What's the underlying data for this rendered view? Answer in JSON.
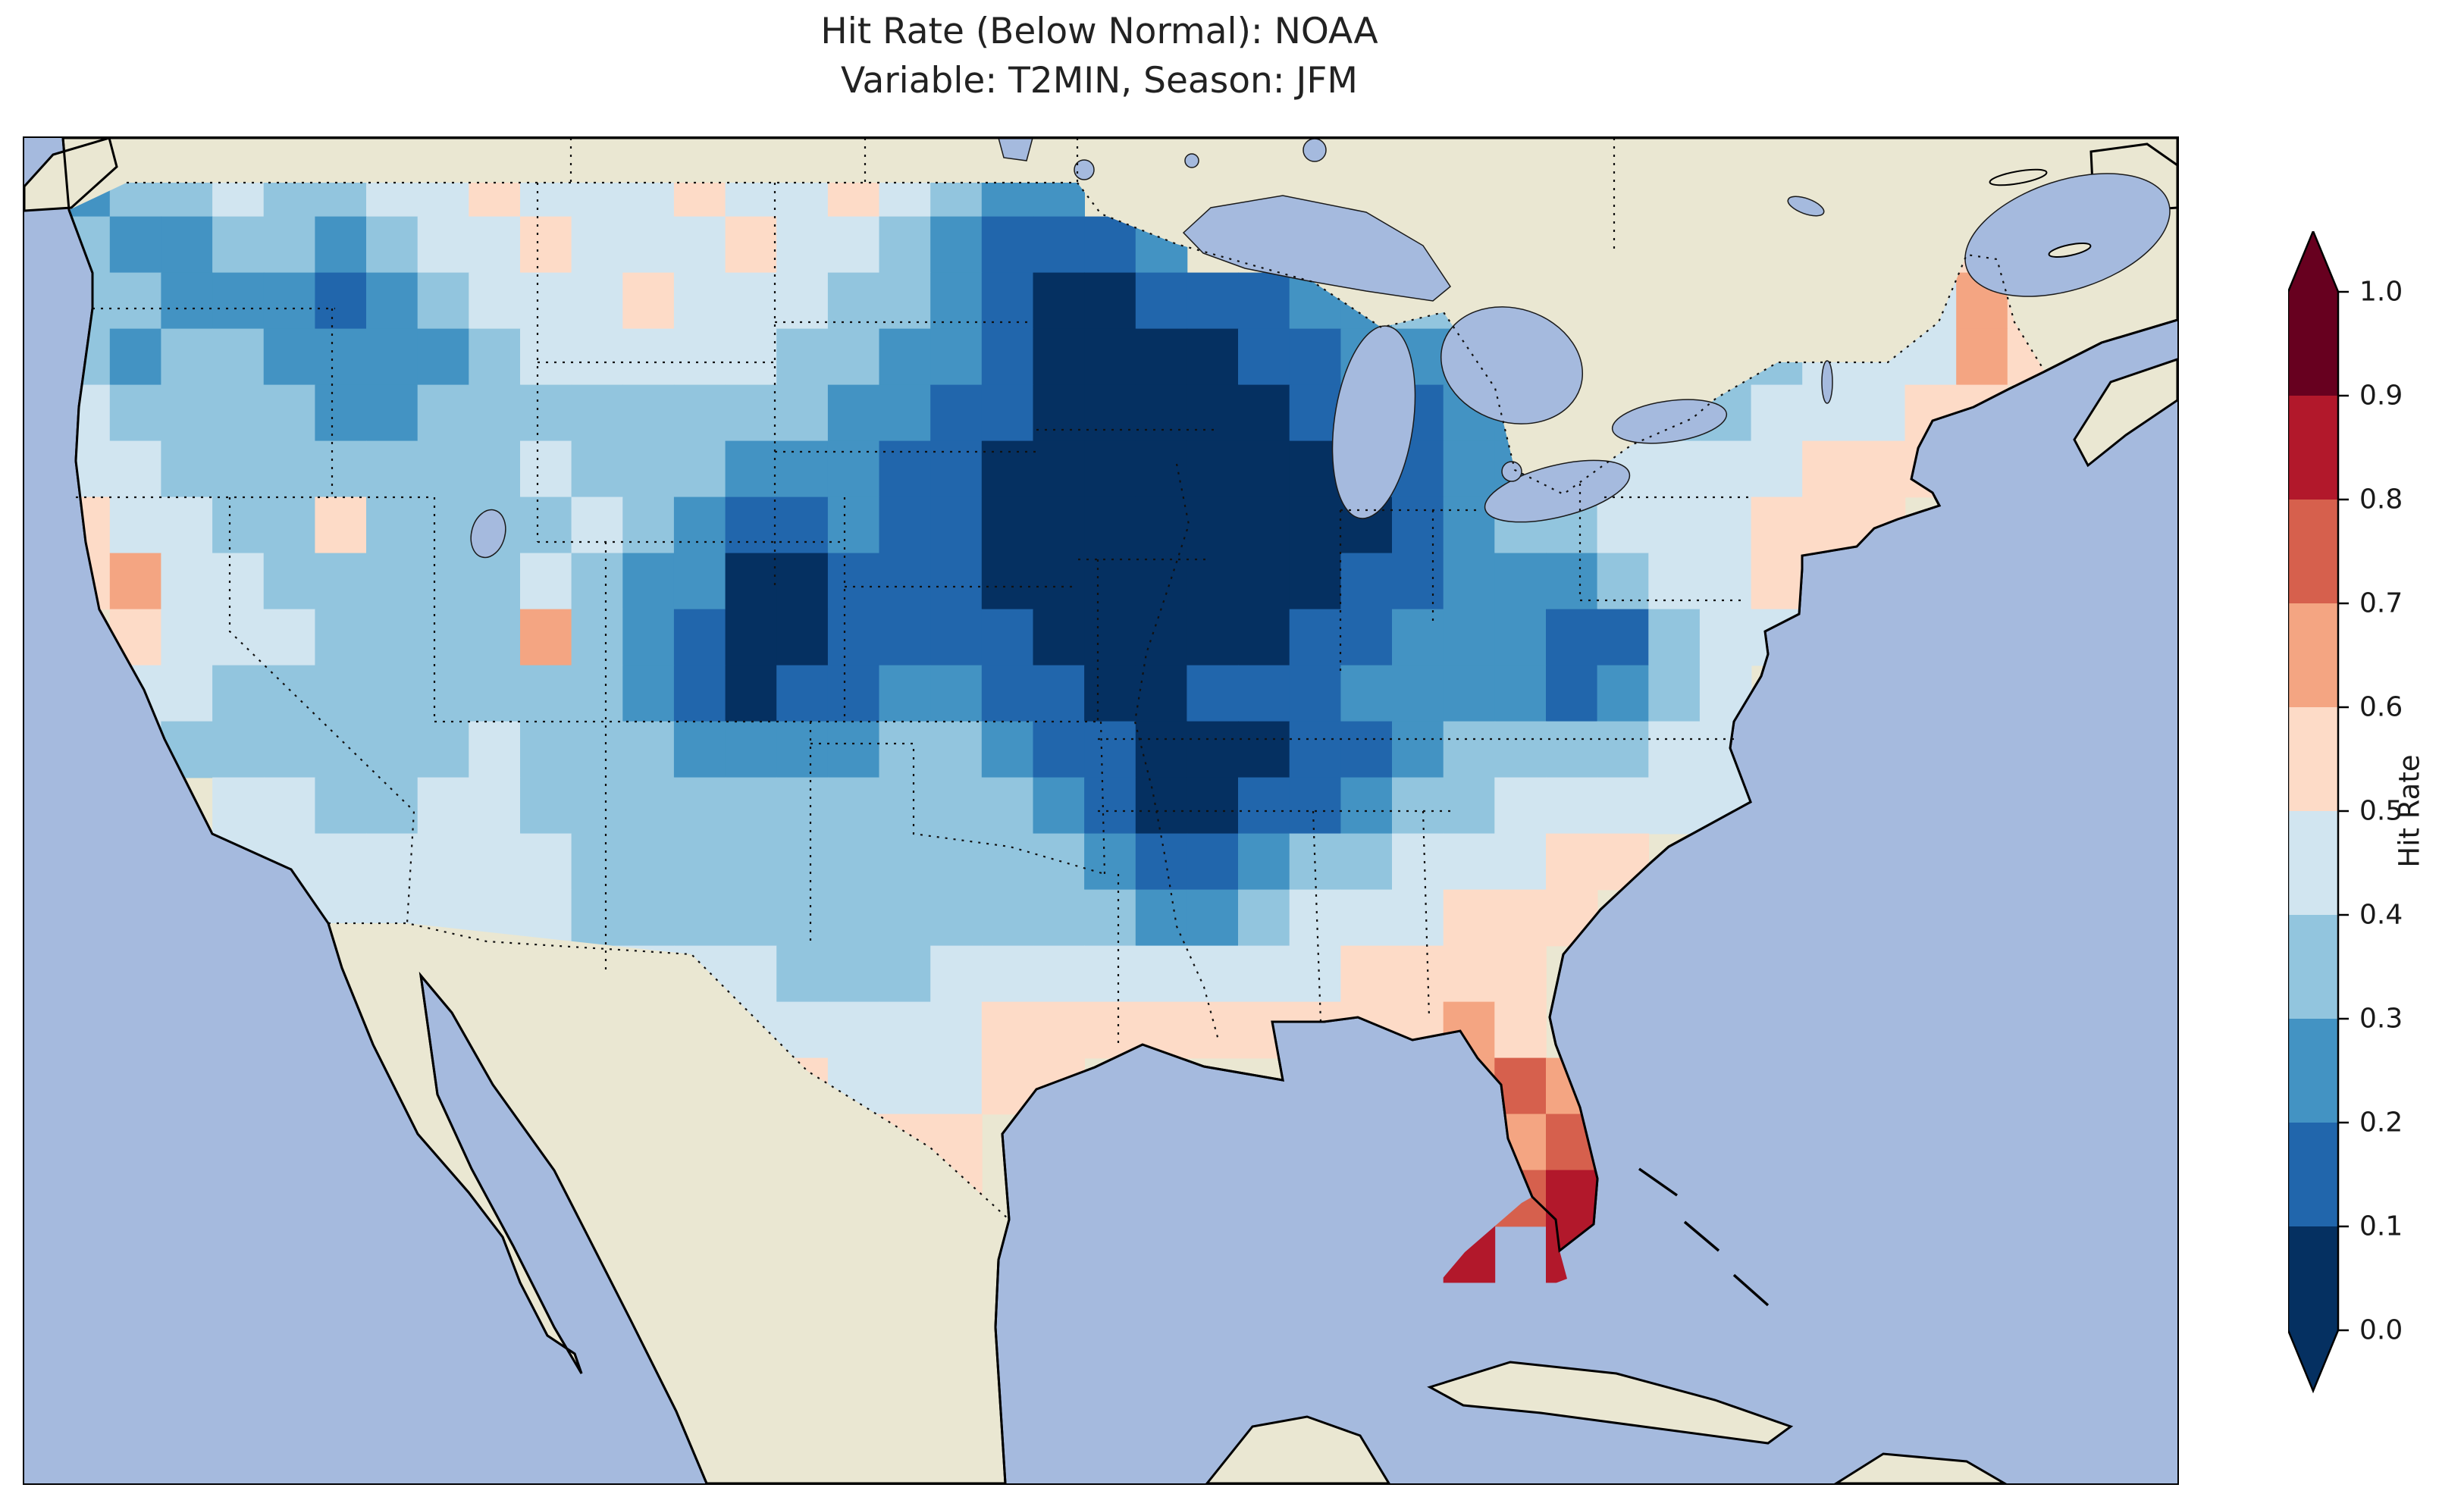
{
  "figure": {
    "title_line1": "Hit Rate (Below Normal): NOAA",
    "title_line2": "Variable: T2MIN, Season: JFM"
  },
  "colorbar": {
    "label": "Hit Rate",
    "ticks": [
      "1.0",
      "0.9",
      "0.8",
      "0.7",
      "0.6",
      "0.5",
      "0.4",
      "0.3",
      "0.2",
      "0.1",
      "0.0"
    ],
    "bin_colors_low_to_high": [
      "#053061",
      "#2166ac",
      "#4393c3",
      "#92c5de",
      "#d1e5f0",
      "#fddbc7",
      "#f4a582",
      "#d6604d",
      "#b2182b",
      "#67001f"
    ],
    "under_arrow_color": "#053061",
    "over_arrow_color": "#67001f"
  },
  "map_style": {
    "ocean_color": "#a5bade",
    "land_color": "#eae7d2",
    "lake_color": "#a5bade",
    "coastline_color": "#000000",
    "border_style": "dotted"
  },
  "chart_data": {
    "type": "heatmap",
    "title": "Hit Rate (Below Normal): NOAA",
    "subtitle": "Variable: T2MIN, Season: JFM",
    "metric": "Hit Rate (Below Normal)",
    "source": "NOAA",
    "variable": "T2MIN",
    "season": "JFM",
    "colormap": "RdBu_r (discrete, 10 bins)",
    "vmin": 0.0,
    "vmax": 1.0,
    "colorbar_label": "Hit Rate",
    "colorbar_ticks": [
      0.0,
      0.1,
      0.2,
      0.3,
      0.4,
      0.5,
      0.6,
      0.7,
      0.8,
      0.9,
      1.0
    ],
    "legend_position": "right",
    "region": "Contiguous United States (CONUS)",
    "grid": {
      "lon_min": -125,
      "lon_max": -65,
      "lat_min": 24.5,
      "lat_max": 49.5,
      "ncols": 40,
      "nrows": 20,
      "encoding": "rows ordered north to south; each char is a hit-rate bin digit d (value between d/10 and (d+1)/10); '.' = no data / masked",
      "rows": [
        "23343344544454454322....................",
        "3223323445444544321112...............54.",
        "33222123444544433210011122333.......465.",
        "32332222344444332210000112223...3344465.",
        "43333223333333322110000011122333344455..",
        "4433333334333222110000000112234444555...",
        "544335333343211211000000001233444555....",
        "56443333343220011100000001122234455.....",
        ".544433336321001111000001122211344......",
        ".44333333332101122110011122221234.......",
        ".43333334333222233211000112333344.......",
        "...443344333333333321001123344444.......",
        "...4444444333333333321123344455.........",
        "....44444433333333333223444555..........",
        ".......4454444333444444445555...........",
        ".............4444455555555565...........",
        "..............544455.......676..........",
        "...............555..........67..........",
        "................55..........78..........",
        "...........................8.8.........."
      ]
    },
    "notable_features": [
      "Lowest hit rates (0.0-0.1, dark navy) over Upper Midwest / Corn Belt (MN, IA, WI, IL, MO) and eastern Colorado",
      "Secondary dark-navy minimum over Arkansas / mid-South",
      "Broad 0.2-0.4 blues across the interior West and Plains",
      "Hit rates above 0.5 (pinks) along coasts, Gulf states and Eastern Seaboard",
      "Maxima 0.6-0.8+ (orange/red) over Florida peninsula and Keys; orange spot in Maine"
    ]
  }
}
